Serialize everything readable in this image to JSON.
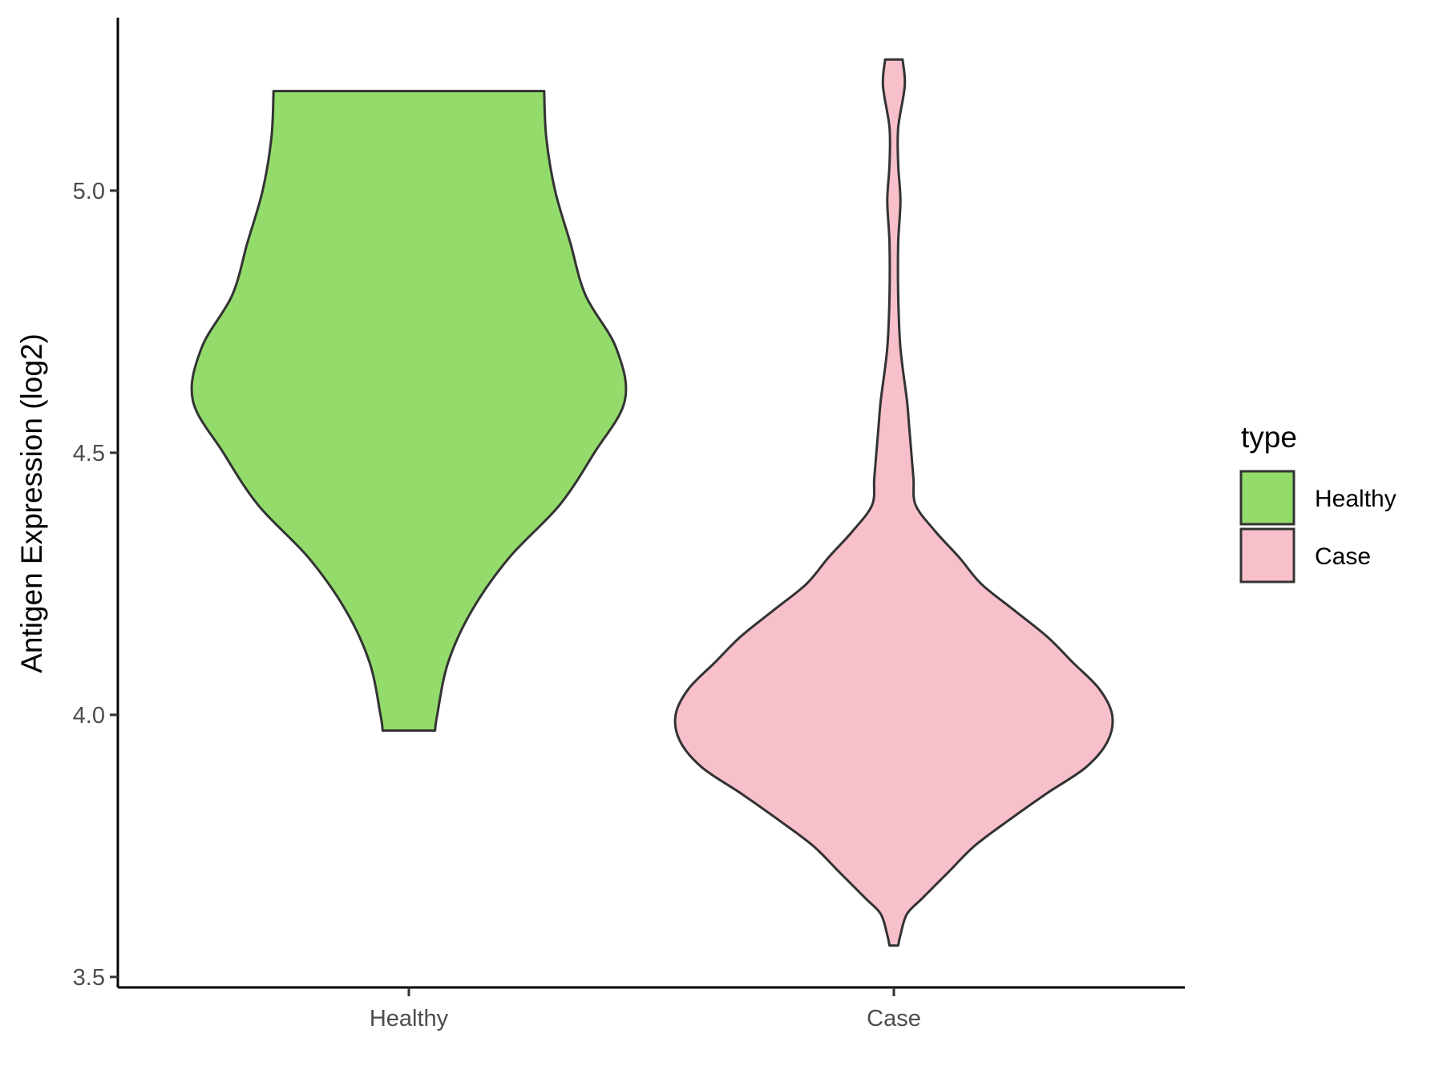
{
  "chart_data": {
    "type": "violin",
    "title": "",
    "xlabel": "",
    "ylabel": "Antigen Expression (log2)",
    "categories": [
      "Healthy",
      "Case"
    ],
    "y_ticks": [
      "3.5",
      "4.0",
      "4.5",
      "5.0"
    ],
    "y_tick_values": [
      3.5,
      4.0,
      4.5,
      5.0
    ],
    "ylim": [
      3.48,
      5.33
    ],
    "grid": false,
    "legend": {
      "title": "type",
      "position": "right",
      "entries": [
        "Healthy",
        "Case"
      ]
    },
    "series": [
      {
        "name": "Healthy",
        "color": "#93dc6b",
        "y_min": 3.97,
        "y_max": 5.19,
        "density": [
          [
            3.97,
            0.12
          ],
          [
            4.0,
            0.13
          ],
          [
            4.1,
            0.18
          ],
          [
            4.2,
            0.29
          ],
          [
            4.3,
            0.46
          ],
          [
            4.4,
            0.69
          ],
          [
            4.5,
            0.85
          ],
          [
            4.6,
            0.99
          ],
          [
            4.7,
            0.95
          ],
          [
            4.8,
            0.81
          ],
          [
            4.9,
            0.74
          ],
          [
            5.0,
            0.67
          ],
          [
            5.1,
            0.63
          ],
          [
            5.19,
            0.62
          ]
        ]
      },
      {
        "name": "Case",
        "color": "#f8c0cb",
        "y_min": 3.56,
        "y_max": 5.25,
        "density": [
          [
            3.56,
            0.02
          ],
          [
            3.58,
            0.03
          ],
          [
            3.62,
            0.06
          ],
          [
            3.65,
            0.13
          ],
          [
            3.7,
            0.25
          ],
          [
            3.75,
            0.37
          ],
          [
            3.8,
            0.53
          ],
          [
            3.85,
            0.7
          ],
          [
            3.9,
            0.88
          ],
          [
            3.95,
            0.98
          ],
          [
            4.0,
            1.0
          ],
          [
            4.05,
            0.94
          ],
          [
            4.1,
            0.82
          ],
          [
            4.15,
            0.7
          ],
          [
            4.2,
            0.55
          ],
          [
            4.25,
            0.4
          ],
          [
            4.3,
            0.3
          ],
          [
            4.35,
            0.19
          ],
          [
            4.4,
            0.1
          ],
          [
            4.45,
            0.09
          ],
          [
            4.5,
            0.08
          ],
          [
            4.55,
            0.07
          ],
          [
            4.6,
            0.06
          ],
          [
            4.7,
            0.03
          ],
          [
            4.8,
            0.02
          ],
          [
            4.9,
            0.02
          ],
          [
            4.98,
            0.03
          ],
          [
            5.05,
            0.02
          ],
          [
            5.12,
            0.02
          ],
          [
            5.2,
            0.05
          ],
          [
            5.25,
            0.04
          ]
        ]
      }
    ]
  }
}
